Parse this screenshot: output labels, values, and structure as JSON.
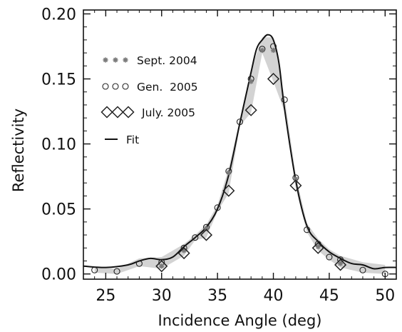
{
  "chart_data": {
    "type": "scatter",
    "title": "",
    "xlabel": "Incidence Angle (deg)",
    "ylabel": "Reflectivity",
    "xlim": [
      23,
      51
    ],
    "ylim": [
      -0.004,
      0.203
    ],
    "xticks": [
      25,
      30,
      35,
      40,
      45,
      50
    ],
    "yticks": [
      0.0,
      0.05,
      0.1,
      0.15,
      0.2
    ],
    "xtick_labels": [
      "25",
      "30",
      "35",
      "40",
      "45",
      "50"
    ],
    "ytick_labels": [
      "0.00",
      "0.05",
      "0.10",
      "0.15",
      "0.20"
    ],
    "grid": false,
    "legend_position": "top-left",
    "legend": [
      "Sept. 2004",
      "Gen.  2005",
      "July. 2005",
      "Fit"
    ],
    "colors": {
      "axis": "#111111",
      "sept": "#8a8a8a",
      "band": "#c4c4c4",
      "marker": "#222222"
    },
    "series": [
      {
        "name": "Sept. 2004",
        "marker": "star",
        "x": [
          30,
          32,
          34,
          36,
          38,
          39,
          40,
          42,
          44,
          46
        ],
        "y": [
          0.006,
          0.018,
          0.035,
          0.078,
          0.148,
          0.172,
          0.172,
          0.073,
          0.021,
          0.008
        ]
      },
      {
        "name": "Gen.  2005",
        "marker": "circle",
        "x": [
          24,
          26,
          28,
          30,
          32,
          33,
          34,
          35,
          36,
          37,
          38,
          39,
          40,
          41,
          42,
          43,
          44,
          45,
          46,
          48,
          50
        ],
        "y": [
          0.003,
          0.002,
          0.008,
          0.009,
          0.02,
          0.028,
          0.036,
          0.051,
          0.079,
          0.117,
          0.15,
          0.173,
          0.175,
          0.134,
          0.074,
          0.034,
          0.023,
          0.013,
          0.011,
          0.003,
          0.0
        ]
      },
      {
        "name": "July. 2005",
        "marker": "diamond",
        "x": [
          30,
          32,
          34,
          36,
          38,
          40,
          42,
          44,
          46
        ],
        "y": [
          0.006,
          0.016,
          0.03,
          0.064,
          0.126,
          0.15,
          0.068,
          0.02,
          0.007
        ]
      },
      {
        "name": "Fit",
        "marker": "line",
        "x": [
          23,
          25,
          27,
          28,
          29,
          30,
          31,
          32,
          33,
          34,
          35,
          36,
          37,
          38,
          38.5,
          39,
          39.5,
          40,
          40.5,
          41,
          42,
          43,
          44,
          45,
          46,
          47,
          48,
          49,
          50,
          51
        ],
        "y": [
          0.006,
          0.005,
          0.007,
          0.01,
          0.012,
          0.011,
          0.013,
          0.021,
          0.028,
          0.036,
          0.05,
          0.076,
          0.116,
          0.155,
          0.173,
          0.18,
          0.184,
          0.18,
          0.162,
          0.127,
          0.072,
          0.037,
          0.025,
          0.017,
          0.012,
          0.008,
          0.007,
          0.004,
          0.005,
          0.005
        ]
      }
    ]
  }
}
